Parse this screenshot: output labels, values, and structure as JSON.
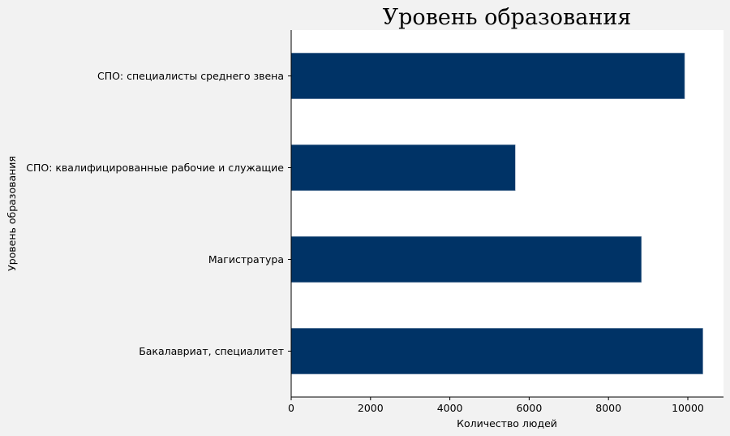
{
  "chart_data": {
    "type": "bar",
    "orientation": "horizontal",
    "title": "Уровень образования",
    "xlabel": "Количество людей",
    "ylabel": "Уровень образования",
    "categories": [
      "Бакалавриат, специалитет",
      "Магистратура",
      "СПО: квалифицированные рабочие и служащие",
      "СПО: специалисты среднего звена"
    ],
    "values": [
      10380,
      8830,
      5650,
      9920
    ],
    "xlim": [
      0,
      10900
    ],
    "xticks": [
      "0",
      "2000",
      "4000",
      "6000",
      "8000",
      "10000"
    ],
    "bar_color": "#003366",
    "background_color": "#f2f2f2",
    "plot_background_color": "#ffffff",
    "grid": false
  }
}
